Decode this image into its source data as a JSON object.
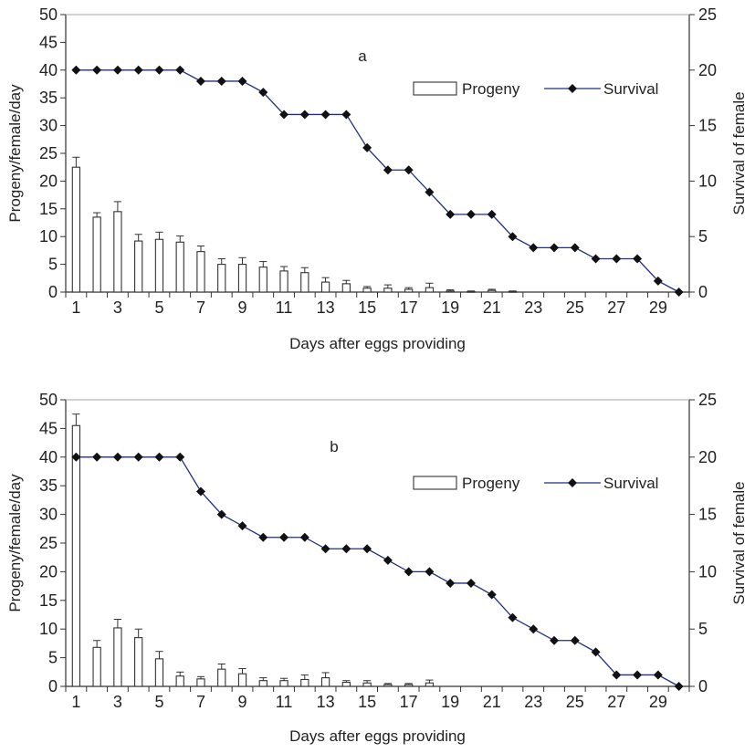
{
  "chart_data": [
    {
      "type": "bar",
      "panel_label": "a",
      "xlabel": "Days after eggs providing",
      "ylabel": "Progeny/female/day",
      "ylabel_right": "Survival of female",
      "ylim": [
        0,
        50
      ],
      "y_ticks": [
        0,
        5,
        10,
        15,
        20,
        25,
        30,
        35,
        40,
        45,
        50
      ],
      "ylim_right": [
        0,
        25
      ],
      "y_ticks_right": [
        0,
        5,
        10,
        15,
        20,
        25
      ],
      "x_tick_labels": [
        "1",
        "3",
        "5",
        "7",
        "9",
        "11",
        "13",
        "15",
        "17",
        "19",
        "21",
        "23",
        "25",
        "27",
        "29"
      ],
      "x": [
        1,
        2,
        3,
        4,
        5,
        6,
        7,
        8,
        9,
        10,
        11,
        12,
        13,
        14,
        15,
        16,
        17,
        18,
        19,
        20,
        21,
        22,
        23,
        24,
        25,
        26,
        27,
        28,
        29,
        30
      ],
      "legend_position": "upper-right",
      "series": [
        {
          "name": "Progeny",
          "kind": "bar",
          "axis": "left",
          "values": [
            22.5,
            13.5,
            14.5,
            9.2,
            9.5,
            9.0,
            7.3,
            5.0,
            5.0,
            4.5,
            3.8,
            3.5,
            1.8,
            1.5,
            0.7,
            0.7,
            0.5,
            0.8,
            0.2,
            0.1,
            0.3,
            0.1,
            0,
            0,
            0,
            0,
            0,
            0,
            0,
            0
          ],
          "errors": [
            1.8,
            0.8,
            1.8,
            1.2,
            1.3,
            1.1,
            1.0,
            1.0,
            1.2,
            1.0,
            0.8,
            0.9,
            0.8,
            0.6,
            0.3,
            0.6,
            0.3,
            0.8,
            0.2,
            0.1,
            0.2,
            0.1,
            0,
            0,
            0,
            0,
            0,
            0,
            0,
            0
          ]
        },
        {
          "name": "Survival",
          "kind": "line",
          "axis": "right",
          "values": [
            20,
            20,
            20,
            20,
            20,
            20,
            19,
            19,
            19,
            18,
            16,
            16,
            16,
            16,
            13,
            11,
            11,
            9,
            7,
            7,
            7,
            5,
            4,
            4,
            4,
            3,
            3,
            3,
            1,
            0
          ]
        }
      ]
    },
    {
      "type": "bar",
      "panel_label": "b",
      "xlabel": "Days after eggs providing",
      "ylabel": "Progeny/female/day",
      "ylabel_right": "Survival of female",
      "ylim": [
        0,
        50
      ],
      "y_ticks": [
        0,
        5,
        10,
        15,
        20,
        25,
        30,
        35,
        40,
        45,
        50
      ],
      "ylim_right": [
        0,
        25
      ],
      "y_ticks_right": [
        0,
        5,
        10,
        15,
        20,
        25
      ],
      "x_tick_labels": [
        "1",
        "3",
        "5",
        "7",
        "9",
        "11",
        "13",
        "15",
        "17",
        "19",
        "21",
        "23",
        "25",
        "27",
        "29"
      ],
      "x": [
        1,
        2,
        3,
        4,
        5,
        6,
        7,
        8,
        9,
        10,
        11,
        12,
        13,
        14,
        15,
        16,
        17,
        18,
        19,
        20,
        21,
        22,
        23,
        24,
        25,
        26,
        27,
        28,
        29,
        30
      ],
      "legend_position": "upper-right",
      "series": [
        {
          "name": "Progeny",
          "kind": "bar",
          "axis": "left",
          "values": [
            45.5,
            6.8,
            10.2,
            8.5,
            4.8,
            1.8,
            1.3,
            3.0,
            2.2,
            1.0,
            1.0,
            1.2,
            1.5,
            0.7,
            0.6,
            0.3,
            0.3,
            0.6,
            0,
            0,
            0,
            0,
            0,
            0,
            0,
            0,
            0,
            0,
            0,
            0
          ],
          "errors": [
            2.0,
            1.2,
            1.5,
            1.5,
            1.3,
            0.7,
            0.4,
            0.9,
            0.9,
            0.5,
            0.4,
            0.8,
            0.9,
            0.3,
            0.4,
            0.2,
            0.2,
            0.5,
            0,
            0,
            0,
            0,
            0,
            0,
            0,
            0,
            0,
            0,
            0,
            0
          ]
        },
        {
          "name": "Survival",
          "kind": "line",
          "axis": "right",
          "values": [
            20,
            20,
            20,
            20,
            20,
            20,
            17,
            15,
            14,
            13,
            13,
            13,
            12,
            12,
            12,
            11,
            10,
            10,
            9,
            9,
            8,
            6,
            5,
            4,
            4,
            3,
            1,
            1,
            1,
            0
          ]
        }
      ]
    }
  ]
}
